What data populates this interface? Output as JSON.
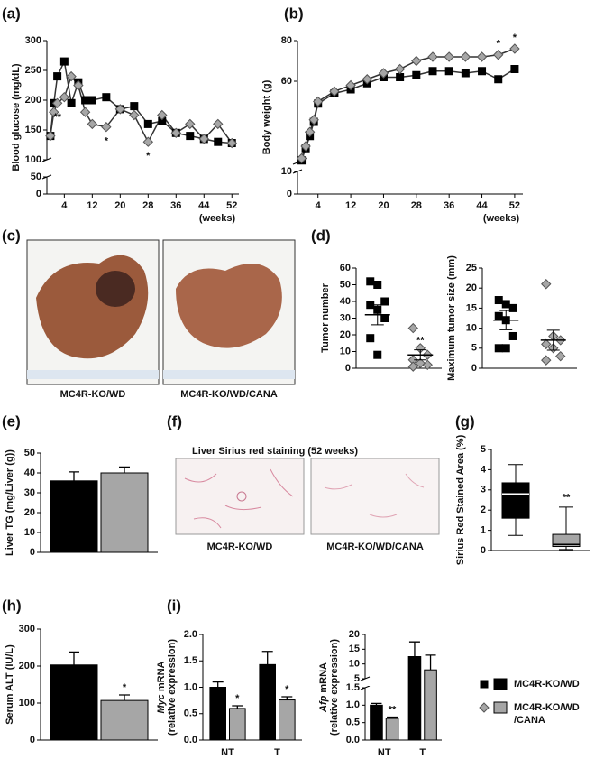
{
  "chart_data": [
    {
      "type": "line",
      "panel": "(a)",
      "ylabel": "Blood glucose (mg/dL)",
      "xlabel": "(weeks)",
      "x": [
        0,
        1,
        2,
        4,
        6,
        8,
        10,
        12,
        16,
        20,
        24,
        28,
        32,
        36,
        40,
        44,
        48,
        52
      ],
      "xlim": [
        -1,
        54
      ],
      "xticks": [
        4,
        12,
        20,
        28,
        36,
        44,
        52
      ],
      "ylim": [
        0,
        300
      ],
      "ybreak": [
        50,
        100
      ],
      "yticks": [
        0,
        50,
        100,
        150,
        200,
        250,
        300
      ],
      "series": [
        {
          "color": "#000000",
          "marker": "square",
          "values": [
            140,
            195,
            240,
            265,
            195,
            230,
            200,
            200,
            205,
            185,
            190,
            160,
            165,
            145,
            140,
            135,
            130,
            128
          ]
        },
        {
          "color": "#a6a6a6",
          "marker": "diamond",
          "values": [
            140,
            180,
            195,
            205,
            240,
            225,
            180,
            160,
            155,
            185,
            175,
            130,
            175,
            145,
            160,
            135,
            160,
            128
          ]
        }
      ],
      "annotations": [
        {
          "text": "**",
          "x": 2
        },
        {
          "text": "*",
          "x": 16
        },
        {
          "text": "*",
          "x": 28
        }
      ]
    },
    {
      "type": "line",
      "panel": "(b)",
      "ylabel": "Body weight (g)",
      "xlabel": "(weeks)",
      "x": [
        0,
        1,
        2,
        3,
        4,
        8,
        12,
        16,
        20,
        24,
        28,
        32,
        36,
        40,
        44,
        48,
        52
      ],
      "xlim": [
        -1,
        54
      ],
      "xticks": [
        4,
        12,
        20,
        28,
        36,
        44,
        52
      ],
      "ylim": [
        0,
        80
      ],
      "ybreak": [
        10,
        20
      ],
      "yticks": [
        0,
        10,
        60,
        80
      ],
      "series": [
        {
          "color": "#000000",
          "marker": "square",
          "values": [
            21,
            27,
            33,
            40,
            49,
            54,
            56,
            59,
            62,
            62,
            63,
            65,
            65,
            64,
            65,
            61,
            66
          ]
        },
        {
          "color": "#a6a6a6",
          "marker": "diamond",
          "values": [
            22,
            28,
            35,
            41,
            50,
            55,
            58,
            61,
            64,
            66,
            70,
            72,
            72,
            72,
            72,
            73,
            76
          ]
        }
      ],
      "annotations": [
        {
          "text": "*",
          "x": 48
        },
        {
          "text": "*",
          "x": 52
        }
      ]
    },
    {
      "type": "dotplot",
      "panel": "(d)",
      "ylabel": "Tumor number",
      "ylim": [
        0,
        60
      ],
      "yticks": [
        0,
        10,
        20,
        30,
        40,
        50,
        60
      ],
      "series": [
        {
          "color": "#000000",
          "marker": "square",
          "values": [
            52,
            50,
            40,
            38,
            35,
            30,
            18,
            8
          ],
          "mean": 32,
          "sem": 6
        },
        {
          "color": "#a6a6a6",
          "marker": "diamond",
          "values": [
            24,
            12,
            8,
            5,
            3,
            2,
            1
          ],
          "mean": 8,
          "sem": 3,
          "significance": "**"
        }
      ]
    },
    {
      "type": "dotplot",
      "ylabel": "Maximum tumor size (mm)",
      "ylim": [
        0,
        25
      ],
      "yticks": [
        0,
        5,
        10,
        15,
        20,
        25
      ],
      "series": [
        {
          "color": "#000000",
          "marker": "square",
          "values": [
            17,
            16,
            15,
            13,
            12,
            8,
            5,
            5
          ],
          "mean": 12,
          "sem": 2.4
        },
        {
          "color": "#a6a6a6",
          "marker": "diamond",
          "values": [
            21,
            8,
            7,
            6,
            5,
            3,
            2
          ],
          "mean": 7,
          "sem": 2.5
        }
      ]
    },
    {
      "type": "bar",
      "panel": "(e)",
      "ylabel": "Liver TG (mg/Liver (g))",
      "categories": [
        null
      ],
      "ylim": [
        0,
        50
      ],
      "yticks": [
        0,
        10,
        20,
        30,
        40,
        50
      ],
      "series": [
        {
          "color": "#000000",
          "values": [
            36
          ],
          "errors": [
            4.5
          ]
        },
        {
          "color": "#a6a6a6",
          "values": [
            40
          ],
          "errors": [
            3
          ]
        }
      ]
    },
    {
      "type": "box",
      "panel": "(g)",
      "ylabel": "Sirius Red Stained Area (%)",
      "categories": [
        null
      ],
      "ylim": [
        0,
        5
      ],
      "yticks": [
        0,
        1,
        2,
        3,
        4,
        5
      ],
      "series": [
        {
          "color": "#000000",
          "median_color": "#ffffff",
          "min": 0.75,
          "q1": 1.6,
          "median": 2.8,
          "q3": 3.35,
          "max": 4.25
        },
        {
          "color": "#a6a6a6",
          "median_color": "#000000",
          "min": 0.05,
          "q1": 0.2,
          "median": 0.3,
          "q3": 0.8,
          "max": 2.15,
          "significance": "**"
        }
      ]
    },
    {
      "type": "bar",
      "panel": "(h)",
      "ylabel": "Serum ALT (IU/L)",
      "categories": [
        null
      ],
      "ylim": [
        0,
        300
      ],
      "yticks": [
        0,
        100,
        200,
        300
      ],
      "series": [
        {
          "color": "#000000",
          "values": [
            203
          ],
          "errors": [
            35
          ]
        },
        {
          "color": "#a6a6a6",
          "values": [
            107
          ],
          "errors": [
            15
          ],
          "significance": [
            "*"
          ]
        }
      ]
    },
    {
      "type": "bar",
      "panel": "(i)",
      "ylabel": {
        "gene": "Myc",
        "text": "mRNA",
        "unit": "(relative expression)"
      },
      "categories": [
        "NT",
        "T"
      ],
      "ylim": [
        0,
        2
      ],
      "yticks": [
        {
          "value": 0,
          "label": "0.0"
        },
        0.5,
        {
          "value": 1,
          "label": "1.0"
        },
        1.5,
        {
          "value": 2,
          "label": "2.0"
        }
      ],
      "series": [
        {
          "color": "#000000",
          "values": [
            1.0,
            1.43
          ],
          "errors": [
            0.1,
            0.25
          ]
        },
        {
          "color": "#a6a6a6",
          "values": [
            0.6,
            0.76
          ],
          "errors": [
            0.05,
            0.06
          ],
          "significance": [
            "*",
            "*"
          ]
        }
      ]
    },
    {
      "type": "bar",
      "ylabel": {
        "gene": "Afp",
        "text": "mRNA",
        "unit": "(relative expression)"
      },
      "categories": [
        "NT",
        "T"
      ],
      "ylim": [
        0,
        20
      ],
      "ybreak": [
        1.5,
        5
      ],
      "yticks": [
        {
          "value": 0,
          "label": "0.0"
        },
        0.5,
        {
          "value": 1,
          "label": "1.0"
        },
        1.5,
        5,
        10,
        15,
        20
      ],
      "series": [
        {
          "color": "#000000",
          "values": [
            1.0,
            12.5
          ],
          "errors": [
            0.05,
            5
          ]
        },
        {
          "color": "#a6a6a6",
          "values": [
            0.62,
            8
          ],
          "errors": [
            0.04,
            5
          ],
          "significance": [
            "**",
            null
          ]
        }
      ]
    }
  ],
  "figures": [
    {
      "panel": "(c)",
      "captions": [
        "MC4R-KO/WD",
        "MC4R-KO/WD/CANA"
      ]
    },
    {
      "panel": "(f)",
      "title": "Liver Sirius red staining (52 weeks)",
      "captions": [
        "MC4R-KO/WD",
        "MC4R-KO/WD/CANA"
      ]
    }
  ],
  "legend": [
    {
      "label": [
        "MC4R-KO/WD"
      ],
      "color": "#000000"
    },
    {
      "label": [
        "MC4R-KO/WD",
        "/CANA"
      ],
      "color": "#a6a6a6"
    }
  ]
}
